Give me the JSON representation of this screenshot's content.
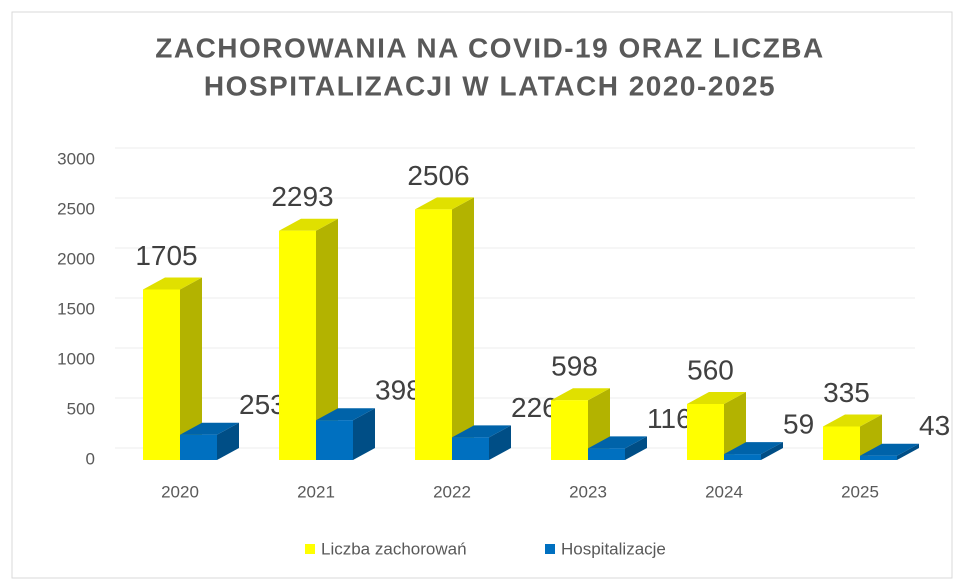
{
  "chart_data": {
    "type": "bar3d",
    "title": [
      "ZACHOROWANIA NA COVID-19 ORAZ LICZBA",
      "HOSPITALIZACJI W LATACH 2020-2025"
    ],
    "categories": [
      "2020",
      "2021",
      "2022",
      "2023",
      "2024",
      "2025"
    ],
    "series": [
      {
        "name": "Liczba zachorowań",
        "color": "#ffff00",
        "values": [
          1705,
          2293,
          2506,
          598,
          560,
          335
        ]
      },
      {
        "name": "Hospitalizacje",
        "color": "#0070c0",
        "values": [
          253,
          398,
          226,
          116,
          59,
          43
        ]
      }
    ],
    "ylim": [
      0,
      3000
    ],
    "yticks": [
      0,
      500,
      1000,
      1500,
      2000,
      2500,
      3000
    ],
    "grid": true,
    "legend": "bottom"
  }
}
